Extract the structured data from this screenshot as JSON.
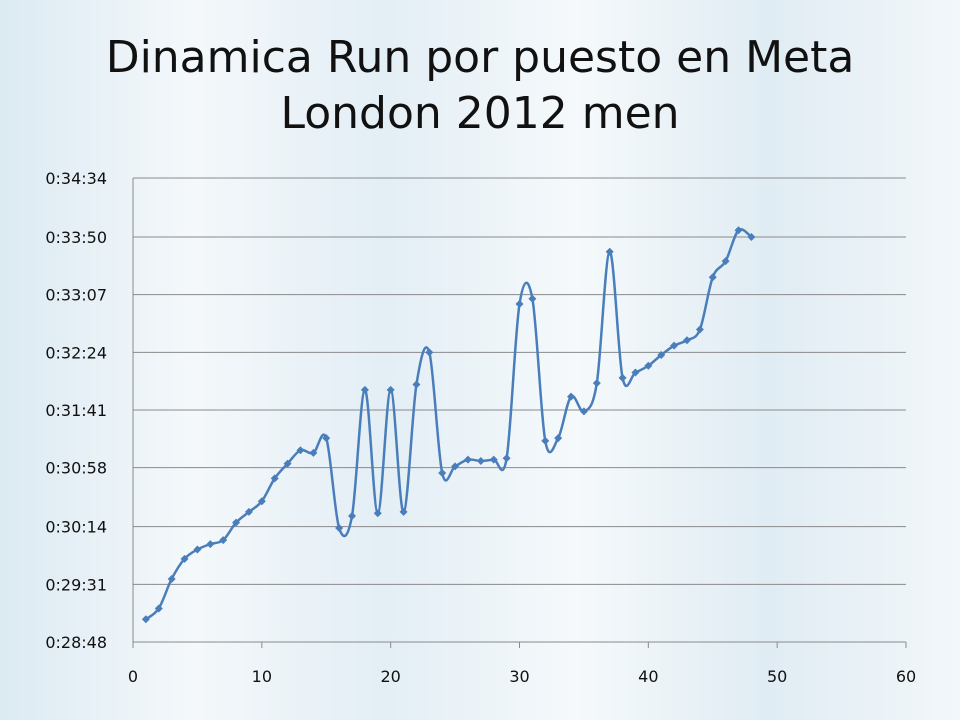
{
  "chart_data": {
    "type": "line",
    "title": "Dinamica Run por puesto en Meta",
    "subtitle": "London 2012 men",
    "xlabel": "",
    "ylabel": "",
    "xlim": [
      0,
      60
    ],
    "ylim": [
      "0:28:48",
      "0:34:34"
    ],
    "x_ticks": [
      "0",
      "10",
      "20",
      "30",
      "40",
      "50",
      "60"
    ],
    "y_ticks": [
      "0:28:48",
      "0:29:31",
      "0:30:14",
      "0:30:58",
      "0:31:41",
      "0:32:24",
      "0:33:07",
      "0:33:50",
      "0:34:34"
    ],
    "grid": true,
    "legend": "none",
    "line_color": "#4a7ebb",
    "x": [
      1,
      2,
      3,
      4,
      5,
      6,
      7,
      8,
      9,
      10,
      11,
      12,
      13,
      14,
      15,
      16,
      17,
      18,
      19,
      20,
      21,
      22,
      23,
      24,
      25,
      26,
      27,
      28,
      29,
      30,
      31,
      32,
      33,
      34,
      35,
      36,
      37,
      38,
      39,
      40,
      41,
      42,
      43,
      44,
      45,
      46,
      47,
      48
    ],
    "series": [
      {
        "values": [
          "0:29:05",
          "0:29:13",
          "0:29:35",
          "0:29:50",
          "0:29:57",
          "0:30:01",
          "0:30:04",
          "0:30:17",
          "0:30:25",
          "0:30:33",
          "0:30:50",
          "0:31:01",
          "0:31:11",
          "0:31:09",
          "0:31:20",
          "0:30:13",
          "0:30:22",
          "0:31:56",
          "0:30:24",
          "0:31:56",
          "0:30:25",
          "0:32:00",
          "0:32:24",
          "0:30:54",
          "0:30:59",
          "0:31:04",
          "0:31:03",
          "0:31:04",
          "0:31:05",
          "0:33:00",
          "0:33:04",
          "0:31:18",
          "0:31:20",
          "0:31:51",
          "0:31:40",
          "0:32:01",
          "0:33:39",
          "0:32:05",
          "0:32:09",
          "0:32:14",
          "0:32:22",
          "0:32:29",
          "0:32:33",
          "0:32:41",
          "0:33:20",
          "0:33:32",
          "0:33:55",
          "0:33:50"
        ]
      }
    ]
  }
}
